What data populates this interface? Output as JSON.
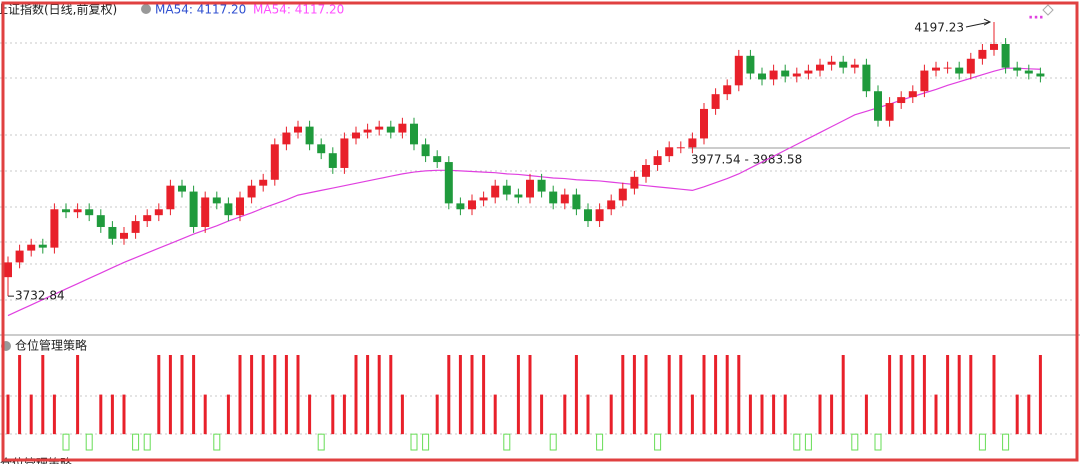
{
  "chart_data": [
    {
      "type": "candlestick",
      "title": "上证指数(日线,前复权)",
      "up_color": "#e8202a",
      "down_color": "#1f9a3c",
      "ylim": [
        3667,
        4221
      ],
      "open": [
        3765,
        3790,
        3810,
        3820,
        3815,
        3880,
        3875,
        3880,
        3870,
        3850,
        3830,
        3840,
        3860,
        3870,
        3880,
        3920,
        3910,
        3850,
        3900,
        3890,
        3870,
        3900,
        3920,
        3930,
        3990,
        4010,
        4020,
        3990,
        3975,
        3950,
        4000,
        4010,
        4015,
        4020,
        4010,
        4025,
        3990,
        3970,
        3960,
        3890,
        3880,
        3895,
        3900,
        3920,
        3905,
        3900,
        3930,
        3910,
        3890,
        3905,
        3880,
        3860,
        3880,
        3895,
        3915,
        3935,
        3955,
        3970,
        3985,
        3985,
        4000,
        4050,
        4075,
        4090,
        4140,
        4110,
        4100,
        4115,
        4105,
        4110,
        4115,
        4125,
        4130,
        4120,
        4125,
        4080,
        4030,
        4060,
        4070,
        4080,
        4115,
        4120,
        4120,
        4110,
        4135,
        4150,
        4160,
        4120,
        4115,
        4110
      ],
      "high": [
        3800,
        3820,
        3830,
        3830,
        3890,
        3890,
        3890,
        3890,
        3880,
        3860,
        3850,
        3870,
        3880,
        3890,
        3930,
        3930,
        3920,
        3910,
        3910,
        3900,
        3910,
        3930,
        3940,
        4000,
        4020,
        4030,
        4030,
        4000,
        3985,
        4010,
        4020,
        4025,
        4030,
        4030,
        4035,
        4035,
        4000,
        3980,
        3970,
        3900,
        3905,
        3910,
        3930,
        3930,
        3915,
        3940,
        3940,
        3920,
        3915,
        3915,
        3890,
        3890,
        3905,
        3925,
        3945,
        3965,
        3980,
        3995,
        3995,
        4010,
        4060,
        4085,
        4100,
        4150,
        4150,
        4120,
        4125,
        4125,
        4120,
        4125,
        4135,
        4140,
        4140,
        4135,
        4135,
        4090,
        4070,
        4080,
        4090,
        4125,
        4130,
        4130,
        4130,
        4145,
        4160,
        4197.23,
        4170,
        4130,
        4125,
        4120
      ],
      "low": [
        3732.84,
        3780,
        3800,
        3805,
        3805,
        3865,
        3865,
        3860,
        3840,
        3820,
        3820,
        3830,
        3850,
        3860,
        3870,
        3900,
        3840,
        3840,
        3880,
        3860,
        3860,
        3890,
        3910,
        3920,
        3980,
        4000,
        3980,
        3965,
        3940,
        3940,
        3990,
        4000,
        4005,
        4000,
        4000,
        3980,
        3960,
        3950,
        3880,
        3870,
        3870,
        3885,
        3890,
        3895,
        3890,
        3890,
        3900,
        3880,
        3880,
        3870,
        3850,
        3850,
        3870,
        3885,
        3905,
        3925,
        3945,
        3960,
        3975,
        3975,
        3990,
        4040,
        4065,
        4080,
        4100,
        4090,
        4090,
        4095,
        4095,
        4100,
        4105,
        4115,
        4110,
        4110,
        4070,
        4020,
        4020,
        4050,
        4060,
        4070,
        4105,
        4110,
        4100,
        4100,
        4125,
        4140,
        4110,
        4105,
        4100,
        4095
      ],
      "close": [
        3790,
        3810,
        3820,
        3815,
        3880,
        3875,
        3880,
        3870,
        3850,
        3830,
        3840,
        3860,
        3870,
        3880,
        3920,
        3910,
        3850,
        3900,
        3890,
        3870,
        3900,
        3920,
        3930,
        3990,
        4010,
        4020,
        3990,
        3975,
        3950,
        4000,
        4010,
        4015,
        4020,
        4010,
        4025,
        3990,
        3970,
        3960,
        3890,
        3880,
        3895,
        3900,
        3920,
        3905,
        3900,
        3930,
        3910,
        3890,
        3905,
        3880,
        3860,
        3880,
        3895,
        3915,
        3935,
        3955,
        3970,
        3985,
        3985,
        4000,
        4050,
        4075,
        4090,
        4140,
        4110,
        4100,
        4115,
        4105,
        4110,
        4115,
        4125,
        4130,
        4120,
        4125,
        4080,
        4030,
        4060,
        4070,
        4080,
        4115,
        4120,
        4120,
        4110,
        4135,
        4150,
        4160,
        4120,
        4115,
        4110,
        4105
      ],
      "ma": {
        "color": "#e040e0",
        "values": [
          3700,
          3709,
          3718,
          3727,
          3736,
          3745,
          3754,
          3763,
          3772,
          3781,
          3790,
          3798,
          3806,
          3814,
          3822,
          3830,
          3838,
          3845,
          3852,
          3860,
          3867,
          3874,
          3882,
          3889,
          3896,
          3904,
          3908,
          3912,
          3916,
          3920,
          3924,
          3928,
          3932,
          3936,
          3940,
          3943,
          3945,
          3946,
          3946,
          3945,
          3944,
          3943,
          3942,
          3940,
          3939,
          3937,
          3935,
          3933,
          3932,
          3930,
          3929,
          3928,
          3926,
          3924,
          3922,
          3920,
          3918,
          3916,
          3914,
          3912,
          3918,
          3925,
          3932,
          3940,
          3950,
          3960,
          3970,
          3980,
          3990,
          4000,
          4010,
          4020,
          4030,
          4040,
          4046,
          4052,
          4058,
          4065,
          4071,
          4077,
          4083,
          4090,
          4096,
          4102,
          4108,
          4114,
          4119,
          4119,
          4118,
          4117.2
        ]
      },
      "legend": [
        {
          "name": "MA54: 4117.20",
          "color": "#3050d0"
        },
        {
          "name": "MA54: 4117.20",
          "color": "#ff50ff"
        }
      ],
      "max_label": "4197.23",
      "min_label": "3732.84",
      "range_label": "3977.54 - 3983.58"
    },
    {
      "type": "bar",
      "title": "仓位管理策略",
      "footer": "仓位管理策略",
      "ylim": [
        -20,
        100
      ],
      "pos_color": "#e8202a",
      "neg_color": "#66dd55",
      "values": [
        50,
        100,
        50,
        100,
        50,
        -20,
        100,
        -20,
        50,
        50,
        50,
        -20,
        -20,
        100,
        100,
        100,
        100,
        50,
        -20,
        50,
        100,
        100,
        100,
        100,
        100,
        100,
        50,
        -20,
        50,
        50,
        100,
        100,
        100,
        100,
        50,
        -20,
        -20,
        50,
        100,
        100,
        100,
        100,
        50,
        -20,
        100,
        100,
        50,
        -20,
        50,
        100,
        50,
        -20,
        50,
        100,
        100,
        100,
        -20,
        100,
        100,
        50,
        100,
        100,
        100,
        100,
        50,
        50,
        50,
        50,
        -20,
        -20,
        50,
        50,
        100,
        -20,
        50,
        -20,
        100,
        100,
        100,
        100,
        50,
        100,
        100,
        100,
        -20,
        100,
        -20,
        50,
        50,
        100
      ]
    }
  ]
}
